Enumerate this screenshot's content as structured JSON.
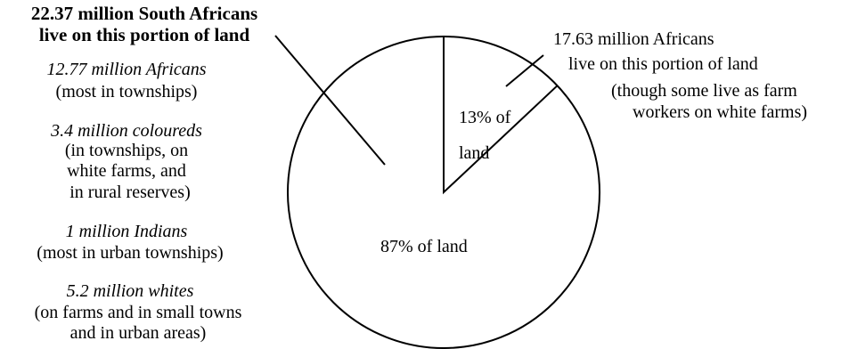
{
  "chart_data": {
    "type": "pie",
    "slices": [
      {
        "label": "13% of land",
        "label_lines": [
          "13% of",
          "land"
        ],
        "value": 13
      },
      {
        "label": "87% of land",
        "label_lines": [
          "87% of  land"
        ],
        "value": 87
      }
    ],
    "left_annotation": {
      "title_lines": [
        "22.37 million South Africans",
        "live on this portion of land"
      ],
      "groups": [
        {
          "name": "12.77 million Africans",
          "detail_lines": [
            "(most in townships)"
          ]
        },
        {
          "name": "3.4 million coloureds",
          "detail_lines": [
            "(in townships, on",
            "white farms, and",
            "in  rural reserves)"
          ]
        },
        {
          "name": "1 million Indians",
          "detail_lines": [
            "(most in urban townships)"
          ]
        },
        {
          "name": "5.2 million whites",
          "detail_lines": [
            "(on farms and in small towns",
            "and in urban areas)"
          ]
        }
      ]
    },
    "right_annotation": {
      "lines": [
        "17.63 million Africans",
        "live on this portion of land",
        "(though some live as farm",
        "workers on white farms)"
      ]
    },
    "colors": {
      "stroke": "#000000",
      "fill": "#ffffff"
    }
  }
}
